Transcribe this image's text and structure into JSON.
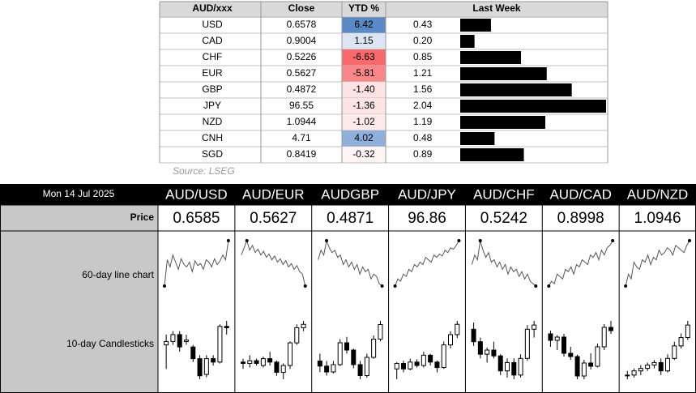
{
  "top_table": {
    "headers": [
      "AUD/xxx",
      "Close",
      "YTD %",
      "Last Week"
    ],
    "rows": [
      {
        "ccy": "USD",
        "close": 0.6578,
        "ytd": 6.42,
        "ytd_color": "#5a8ac6",
        "last_week": 0.43
      },
      {
        "ccy": "CAD",
        "close": 0.9004,
        "ytd": 1.15,
        "ytd_color": "#dce6f2",
        "last_week": {
          "value": 0.2,
          "label": "0.20"
        }
      },
      {
        "ccy": "CHF",
        "close": 0.5226,
        "ytd": -6.63,
        "ytd_color": "#f8696b",
        "last_week": 0.85
      },
      {
        "ccy": "EUR",
        "close": 0.5627,
        "ytd": -5.81,
        "ytd_color": "#f98689",
        "last_week": 1.21
      },
      {
        "ccy": "GBP",
        "close": 0.4872,
        "ytd": {
          "value": -1.4,
          "label": "-1.40"
        },
        "ytd_color": "#fde3e3",
        "last_week": 1.56
      },
      {
        "ccy": "JPY",
        "close": 96.55,
        "ytd": -1.36,
        "ytd_color": "#fde4e4",
        "last_week": 2.04
      },
      {
        "ccy": "NZD",
        "close": 1.0944,
        "ytd": -1.02,
        "ytd_color": "#feeaea",
        "last_week": 1.19
      },
      {
        "ccy": "CNH",
        "close": 4.71,
        "ytd": 4.02,
        "ytd_color": "#8eb0db",
        "last_week": 0.48
      },
      {
        "ccy": "SGD",
        "close": 0.8419,
        "ytd": -0.32,
        "ytd_color": "#fff5f5",
        "last_week": 0.89
      }
    ],
    "negative_text_color": "#c00000",
    "bar_color": "#000000"
  },
  "source": "Source: LSEG",
  "dashboard": {
    "date": "Mon 14 Jul 2025",
    "row_labels": [
      "Price",
      "60-day line chart",
      "10-day Candlesticks"
    ],
    "pairs": [
      {
        "name": "AUD/USD",
        "price": 0.6585,
        "line": [
          5,
          60,
          45,
          70,
          55,
          40,
          62,
          50,
          45,
          55,
          35,
          58,
          48,
          52,
          40,
          60,
          55,
          45,
          62,
          50,
          58,
          70,
          60,
          100
        ],
        "candles": [
          [
            55,
            70,
            20,
            60
          ],
          [
            60,
            75,
            55,
            70
          ],
          [
            70,
            75,
            45,
            52
          ],
          [
            60,
            70,
            55,
            62
          ],
          [
            52,
            55,
            30,
            35
          ],
          [
            35,
            40,
            5,
            10
          ],
          [
            12,
            40,
            8,
            35
          ],
          [
            35,
            40,
            25,
            30
          ],
          [
            30,
            85,
            28,
            82
          ],
          [
            82,
            90,
            70,
            80
          ]
        ]
      },
      {
        "name": "AUD/EUR",
        "price": 0.5627,
        "line": [
          70,
          85,
          100,
          80,
          90,
          75,
          82,
          70,
          78,
          65,
          72,
          60,
          68,
          55,
          62,
          50,
          58,
          45,
          52,
          40,
          48,
          35,
          30,
          5
        ],
        "candles": [
          [
            30,
            35,
            20,
            28
          ],
          [
            28,
            40,
            22,
            32
          ],
          [
            32,
            35,
            25,
            28
          ],
          [
            25,
            38,
            22,
            35
          ],
          [
            35,
            45,
            25,
            30
          ],
          [
            30,
            32,
            10,
            15
          ],
          [
            15,
            28,
            5,
            25
          ],
          [
            25,
            60,
            20,
            58
          ],
          [
            58,
            85,
            55,
            80
          ],
          [
            80,
            90,
            75,
            85
          ]
        ]
      },
      {
        "name": "AUDGBP",
        "price": 0.4871,
        "line": [
          60,
          80,
          70,
          100,
          85,
          75,
          80,
          65,
          70,
          50,
          60,
          45,
          55,
          40,
          50,
          30,
          45,
          35,
          40,
          20,
          30,
          25,
          10,
          5
        ],
        "candles": [
          [
            45,
            55,
            30,
            38
          ],
          [
            38,
            45,
            25,
            30
          ],
          [
            30,
            45,
            28,
            40
          ],
          [
            40,
            75,
            38,
            70
          ],
          [
            70,
            78,
            55,
            60
          ],
          [
            60,
            62,
            35,
            40
          ],
          [
            40,
            45,
            20,
            25
          ],
          [
            25,
            55,
            22,
            50
          ],
          [
            50,
            80,
            48,
            75
          ],
          [
            75,
            100,
            72,
            95
          ]
        ]
      },
      {
        "name": "AUD/JPY",
        "price": 96.86,
        "line": [
          5,
          20,
          15,
          30,
          25,
          40,
          35,
          50,
          45,
          55,
          50,
          65,
          60,
          55,
          70,
          65,
          72,
          68,
          80,
          75,
          85,
          82,
          90,
          100
        ],
        "candles": [
          [
            20,
            30,
            5,
            28
          ],
          [
            28,
            32,
            15,
            20
          ],
          [
            20,
            35,
            18,
            30
          ],
          [
            30,
            34,
            22,
            25
          ],
          [
            25,
            45,
            22,
            40
          ],
          [
            40,
            42,
            25,
            30
          ],
          [
            30,
            32,
            15,
            22
          ],
          [
            22,
            60,
            20,
            55
          ],
          [
            55,
            75,
            50,
            70
          ],
          [
            70,
            90,
            65,
            85
          ]
        ]
      },
      {
        "name": "AUD/CHF",
        "price": 0.5242,
        "line": [
          50,
          70,
          60,
          100,
          80,
          65,
          75,
          55,
          60,
          45,
          55,
          40,
          50,
          30,
          45,
          35,
          40,
          25,
          35,
          20,
          30,
          15,
          10,
          5
        ],
        "candles": [
          [
            70,
            78,
            50,
            55
          ],
          [
            55,
            60,
            35,
            40
          ],
          [
            40,
            48,
            30,
            45
          ],
          [
            45,
            55,
            35,
            38
          ],
          [
            38,
            40,
            15,
            20
          ],
          [
            20,
            35,
            12,
            30
          ],
          [
            30,
            35,
            10,
            15
          ],
          [
            15,
            40,
            12,
            35
          ],
          [
            35,
            75,
            32,
            70
          ],
          [
            70,
            80,
            60,
            75
          ]
        ]
      },
      {
        "name": "AUD/CAD",
        "price": 0.8998,
        "line": [
          5,
          15,
          10,
          30,
          25,
          20,
          40,
          35,
          45,
          30,
          50,
          45,
          60,
          55,
          50,
          70,
          65,
          75,
          60,
          80,
          70,
          85,
          90,
          100
        ],
        "candles": [
          [
            80,
            85,
            60,
            70
          ],
          [
            70,
            78,
            55,
            75
          ],
          [
            75,
            80,
            45,
            50
          ],
          [
            50,
            60,
            40,
            45
          ],
          [
            45,
            48,
            10,
            15
          ],
          [
            15,
            40,
            10,
            35
          ],
          [
            35,
            50,
            25,
            30
          ],
          [
            30,
            65,
            28,
            60
          ],
          [
            60,
            95,
            55,
            90
          ],
          [
            90,
            100,
            80,
            85
          ]
        ]
      },
      {
        "name": "AUD/NZD",
        "price": 1.0946,
        "line": [
          5,
          30,
          20,
          55,
          45,
          40,
          60,
          55,
          70,
          50,
          65,
          60,
          80,
          70,
          75,
          85,
          80,
          70,
          90,
          85,
          80,
          75,
          90,
          100
        ],
        "candles": [
          [
            30,
            35,
            25,
            30
          ],
          [
            30,
            38,
            27,
            35
          ],
          [
            35,
            42,
            30,
            38
          ],
          [
            38,
            45,
            35,
            42
          ],
          [
            42,
            48,
            38,
            45
          ],
          [
            45,
            50,
            30,
            35
          ],
          [
            35,
            55,
            33,
            50
          ],
          [
            50,
            70,
            48,
            65
          ],
          [
            65,
            80,
            62,
            75
          ],
          [
            75,
            95,
            72,
            90
          ]
        ]
      }
    ]
  }
}
